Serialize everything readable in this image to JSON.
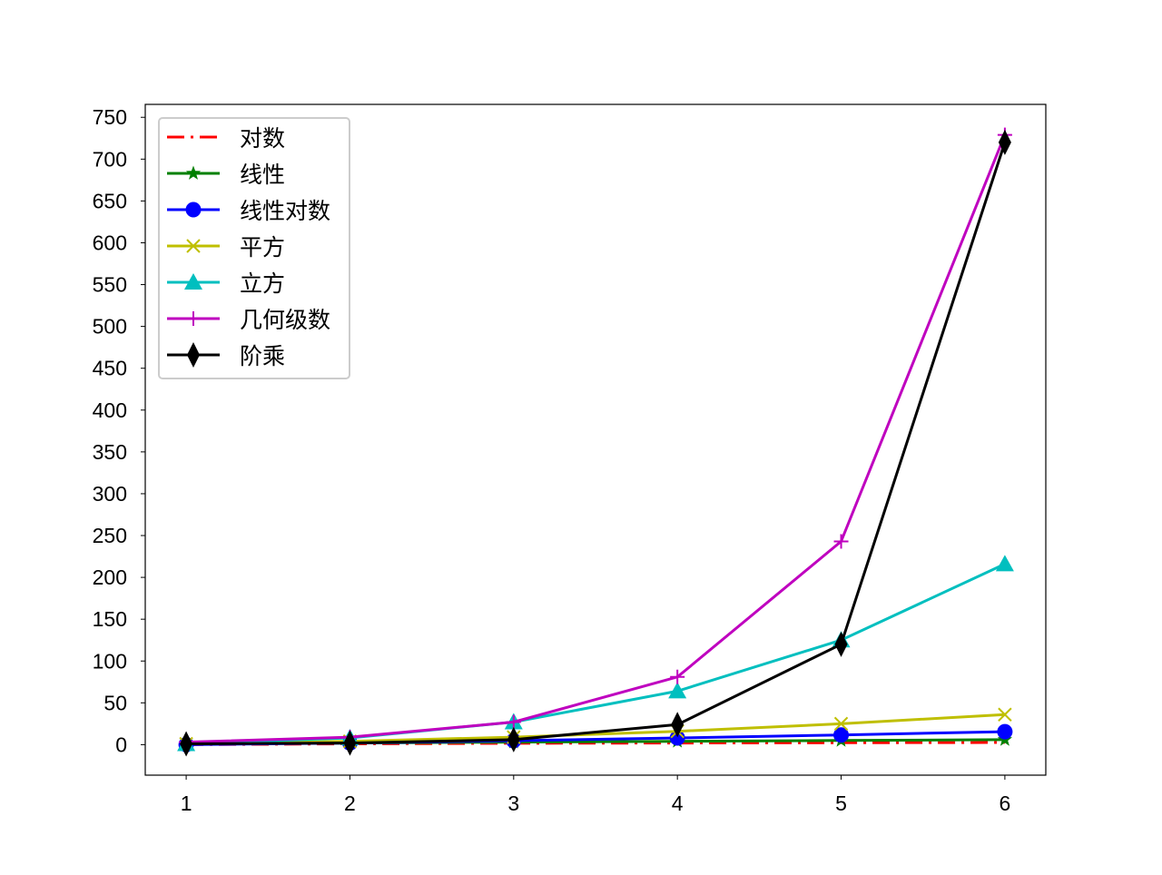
{
  "chart_data": {
    "type": "line",
    "title": "",
    "xlabel": "",
    "ylabel": "",
    "x": [
      1,
      2,
      3,
      4,
      5,
      6
    ],
    "xlim": [
      0.75,
      6.25
    ],
    "ylim": [
      -36.45,
      765.45
    ],
    "xticks": [
      1,
      2,
      3,
      4,
      5,
      6
    ],
    "yticks": [
      0,
      50,
      100,
      150,
      200,
      250,
      300,
      350,
      400,
      450,
      500,
      550,
      600,
      650,
      700,
      750
    ],
    "grid": false,
    "legend_placement": "upper-left",
    "series": [
      {
        "name": "对数",
        "color": "#ff0000",
        "linestyle": "dashdot",
        "marker": "none",
        "values": [
          0,
          1,
          1.585,
          2,
          2.322,
          2.585
        ]
      },
      {
        "name": "线性",
        "color": "#008000",
        "linestyle": "solid",
        "marker": "star",
        "values": [
          1,
          2,
          3,
          4,
          5,
          6
        ]
      },
      {
        "name": "线性对数",
        "color": "#0000ff",
        "linestyle": "solid",
        "marker": "circle",
        "values": [
          0,
          2,
          4.755,
          8,
          11.61,
          15.51
        ]
      },
      {
        "name": "平方",
        "color": "#bfbf00",
        "linestyle": "solid",
        "marker": "x",
        "values": [
          1,
          4,
          9,
          16,
          25,
          36
        ]
      },
      {
        "name": "立方",
        "color": "#00bfbf",
        "linestyle": "solid",
        "marker": "triangle",
        "values": [
          1,
          8,
          27,
          64,
          125,
          216
        ]
      },
      {
        "name": "几何级数",
        "color": "#bf00bf",
        "linestyle": "solid",
        "marker": "plus",
        "values": [
          3,
          9,
          27,
          81,
          243,
          729
        ]
      },
      {
        "name": "阶乘",
        "color": "#000000",
        "linestyle": "solid",
        "marker": "diamond",
        "values": [
          1,
          2,
          6,
          24,
          120,
          720
        ]
      }
    ]
  }
}
